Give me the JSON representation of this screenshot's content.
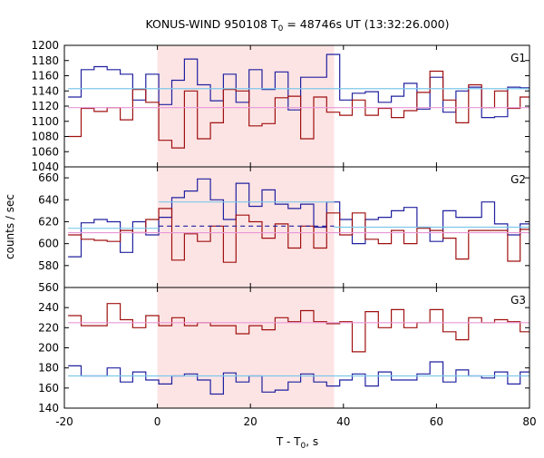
{
  "chart_data": {
    "type": "line",
    "title": {
      "prefix": "KONUS-WIND 950108 T",
      "sub": "0",
      "suffix": " = 48746s UT (13:32:26.000)"
    },
    "xlabel": {
      "prefix": "T - T",
      "sub": "0",
      "suffix": ", s"
    },
    "ylabel": "counts / sec",
    "xlim": [
      -20,
      80
    ],
    "x_ticks": [
      -20,
      0,
      20,
      40,
      60,
      80
    ],
    "shaded_interval": {
      "x": [
        0,
        38
      ],
      "color": "#fde4e4"
    },
    "bin_edges": [
      -19.2,
      -16.4,
      -13.6,
      -10.8,
      -8.0,
      -5.3,
      -2.5,
      0.3,
      3.1,
      5.8,
      8.6,
      11.4,
      14.2,
      16.9,
      19.7,
      22.5,
      25.3,
      28.1,
      30.8,
      33.6,
      36.4,
      39.2,
      41.9,
      44.7,
      47.5,
      50.3,
      53.0,
      55.8,
      58.6,
      61.4,
      64.2,
      66.9,
      69.7,
      72.5,
      75.3,
      78.0,
      80.8
    ],
    "panels": [
      {
        "label": "G1",
        "ylim": [
          1040,
          1200
        ],
        "y_ticks": [
          1040,
          1060,
          1080,
          1100,
          1120,
          1140,
          1160,
          1180,
          1200
        ],
        "series": [
          {
            "color": "#2020a0",
            "type": "step",
            "values": [
              1132,
              1168,
              1172,
              1168,
              1162,
              1128,
              1162,
              1122,
              1154,
              1182,
              1148,
              1127,
              1162,
              1125,
              1168,
              1142,
              1165,
              1115,
              1158,
              1158,
              1188,
              1128,
              1137,
              1139,
              1125,
              1133,
              1150,
              1116,
              1158,
              1112,
              1140,
              1145,
              1105,
              1106,
              1145,
              1144
            ]
          },
          {
            "color": "#a01010",
            "type": "step",
            "values": [
              1080,
              1117,
              1113,
              1118,
              1102,
              1142,
              1125,
              1075,
              1065,
              1140,
              1077,
              1098,
              1142,
              1140,
              1094,
              1097,
              1131,
              1133,
              1077,
              1132,
              1112,
              1108,
              1128,
              1108,
              1117,
              1105,
              1114,
              1138,
              1166,
              1128,
              1098,
              1148,
              1118,
              1140,
              1117,
              1132
            ]
          },
          {
            "color": "#7ec8ea",
            "type": "flat",
            "x": [
              -19.2,
              80.8
            ],
            "value": 1143
          },
          {
            "color": "#e898d8",
            "type": "flat",
            "x": [
              -19.2,
              80.8
            ],
            "value": 1118
          }
        ]
      },
      {
        "label": "G2",
        "ylim": [
          560,
          670
        ],
        "y_ticks": [
          560,
          580,
          600,
          620,
          640,
          660
        ],
        "series": [
          {
            "color": "#2020a0",
            "type": "step",
            "values": [
              588,
              619,
              622,
              620,
              592,
              620,
              608,
              624,
              642,
              648,
              659,
              640,
              622,
              655,
              634,
              649,
              636,
              632,
              636,
              615,
              638,
              622,
              600,
              622,
              624,
              630,
              633,
              615,
              602,
              630,
              624,
              624,
              638,
              618,
              608,
              618
            ]
          },
          {
            "color": "#a01010",
            "type": "step",
            "values": [
              608,
              604,
              603,
              602,
              612,
              610,
              622,
              632,
              585,
              609,
              602,
              616,
              583,
              626,
              620,
              605,
              618,
              596,
              616,
              596,
              628,
              608,
              628,
              604,
              600,
              612,
              600,
              614,
              612,
              605,
              586,
              612,
              612,
              612,
              584,
              613
            ]
          },
          {
            "color": "#7ec8ea",
            "type": "flat",
            "x": [
              0.3,
              38.0
            ],
            "value": 638
          },
          {
            "color": "#7ec8ea",
            "type": "flat",
            "x": [
              -19.2,
              0.3
            ],
            "value": 614
          },
          {
            "color": "#7ec8ea",
            "type": "flat",
            "x": [
              38.0,
              80.8
            ],
            "value": 615
          },
          {
            "color": "#2020a0",
            "type": "dashed",
            "x": [
              0.3,
              38.0
            ],
            "value": 616
          },
          {
            "color": "#e898d8",
            "type": "flat",
            "x": [
              -19.2,
              80.8
            ],
            "value": 610
          }
        ]
      },
      {
        "label": "G3",
        "ylim": [
          140,
          260
        ],
        "y_ticks": [
          140,
          160,
          180,
          200,
          220,
          240
        ],
        "series": [
          {
            "color": "#a01010",
            "type": "step",
            "values": [
              232,
              222,
              222,
              244,
              228,
              220,
              232,
              222,
              230,
              222,
              225,
              222,
              222,
              214,
              222,
              218,
              230,
              226,
              237,
              226,
              224,
              226,
              196,
              236,
              220,
              238,
              220,
              225,
              238,
              216,
              208,
              230,
              225,
              228,
              226,
              216
            ]
          },
          {
            "color": "#2020a0",
            "type": "step",
            "values": [
              182,
              172,
              172,
              180,
              166,
              176,
              168,
              164,
              172,
              174,
              168,
              154,
              175,
              166,
              172,
              156,
              158,
              166,
              174,
              166,
              162,
              168,
              174,
              162,
              176,
              168,
              168,
              174,
              186,
              166,
              178,
              172,
              170,
              176,
              164,
              176
            ]
          },
          {
            "color": "#7ec8ea",
            "type": "flat",
            "x": [
              -19.2,
              80.8
            ],
            "value": 172
          },
          {
            "color": "#e898d8",
            "type": "flat",
            "x": [
              -19.2,
              80.8
            ],
            "value": 225
          }
        ]
      }
    ]
  }
}
